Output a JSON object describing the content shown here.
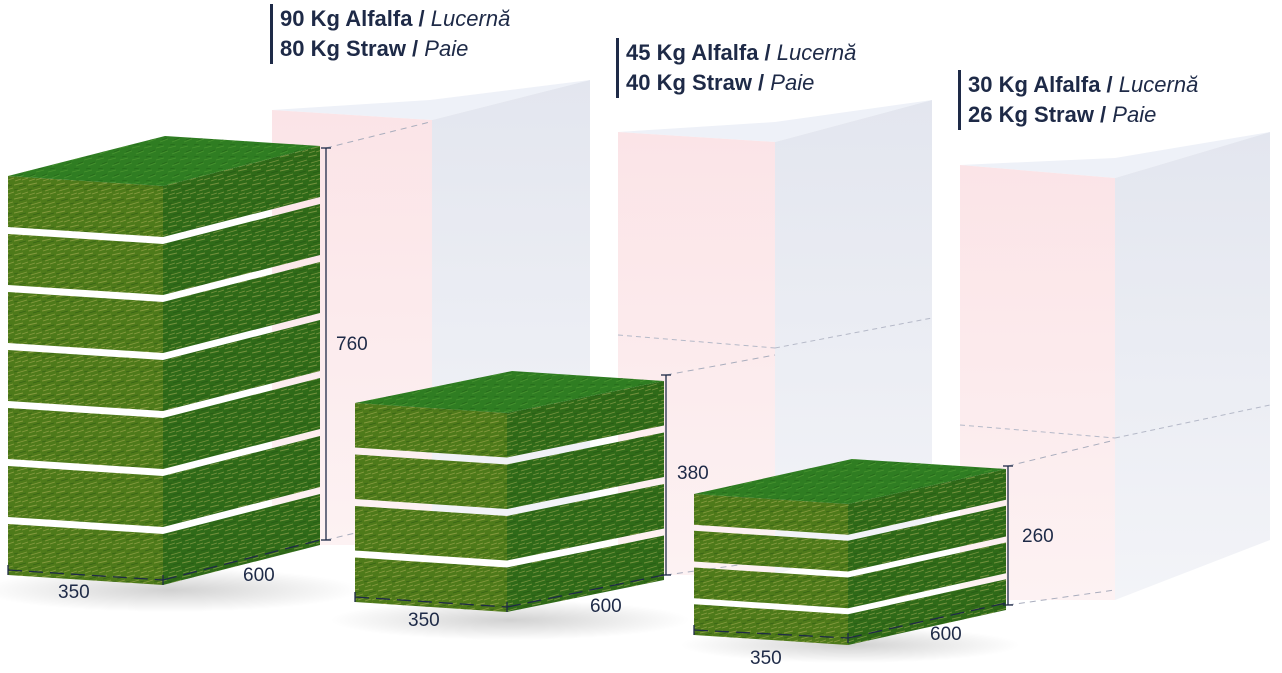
{
  "colors": {
    "hay_top": "#2f7d22",
    "hay_front": "#4e7a1a",
    "hay_side": "#2f6a18",
    "text": "#1e2a47",
    "box_front": "#fbe3e6",
    "box_side": "#e6e8f1",
    "box_top": "#eef1f8"
  },
  "bales": [
    {
      "id": "large",
      "weight_line1": {
        "bold": "90 Kg Alfalfa /",
        "italic": "Lucernă"
      },
      "weight_line2": {
        "bold": "80 Kg Straw /",
        "italic": "Paie"
      },
      "height": "760",
      "width": "350",
      "depth": "600",
      "layers": 7
    },
    {
      "id": "medium",
      "weight_line1": {
        "bold": "45 Kg Alfalfa /",
        "italic": "Lucernă"
      },
      "weight_line2": {
        "bold": "40 Kg Straw /",
        "italic": "Paie"
      },
      "height": "380",
      "width": "350",
      "depth": "600",
      "layers": 4
    },
    {
      "id": "small",
      "weight_line1": {
        "bold": "30 Kg Alfalfa /",
        "italic": "Lucernă"
      },
      "weight_line2": {
        "bold": "26 Kg Straw /",
        "italic": "Paie"
      },
      "height": "260",
      "width": "350",
      "depth": "600",
      "layers": 4
    }
  ]
}
